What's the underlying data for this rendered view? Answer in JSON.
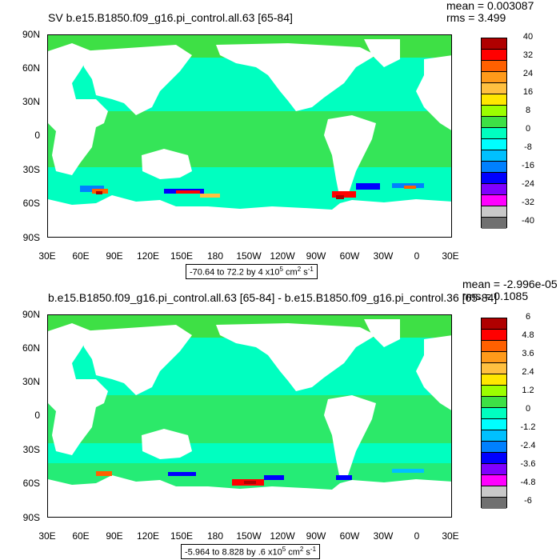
{
  "colormap": [
    "#b00000",
    "#ff0000",
    "#ff6000",
    "#ff9a1a",
    "#ffc040",
    "#ffe700",
    "#9cff00",
    "#3ee045",
    "#00ffc0",
    "#00ffff",
    "#00c0ff",
    "#0080ff",
    "#0000ff",
    "#8000ff",
    "#ff00ff",
    "#c8c8c8",
    "#707070"
  ],
  "panels": [
    {
      "title": "SV b.e15.B1850.f09_g16.pi_control.all.63 [65-84]",
      "mean": "mean = 0.003087",
      "rms": "rms = 3.499",
      "range": {
        "text": "-70.64 to 72.2 by 4 x10",
        "exp": "5",
        "unit": " cm",
        "unit_exp": "2",
        "unit_tail": " s",
        "tail_exp": "-1"
      },
      "colorbar_labels": [
        "40",
        "32",
        "24",
        "16",
        "8",
        "0",
        "-8",
        "-16",
        "-24",
        "-32",
        "-40"
      ]
    },
    {
      "title": "b.e15.B1850.f09_g16.pi_control.all.63 [65-84] - b.e15.B1850.f09_g16.pi_control.36 [65-84]",
      "mean": "mean = -2.996e-05",
      "rms": "rms = 0.1085",
      "range": {
        "text": "-5.964 to 8.828 by .6 x10",
        "exp": "5",
        "unit": " cm",
        "unit_exp": "2",
        "unit_tail": " s",
        "tail_exp": "-1"
      },
      "colorbar_labels": [
        "6",
        "4.8",
        "3.6",
        "2.4",
        "1.2",
        "0",
        "-1.2",
        "-2.4",
        "-3.6",
        "-4.8",
        "-6"
      ]
    }
  ],
  "y_axis": [
    "90N",
    "60N",
    "30N",
    "0",
    "30S",
    "60S",
    "90S"
  ],
  "x_axis": [
    "30E",
    "60E",
    "90E",
    "120E",
    "150E",
    "180",
    "150W",
    "120W",
    "90W",
    "60W",
    "30W",
    "0",
    "30E"
  ]
}
